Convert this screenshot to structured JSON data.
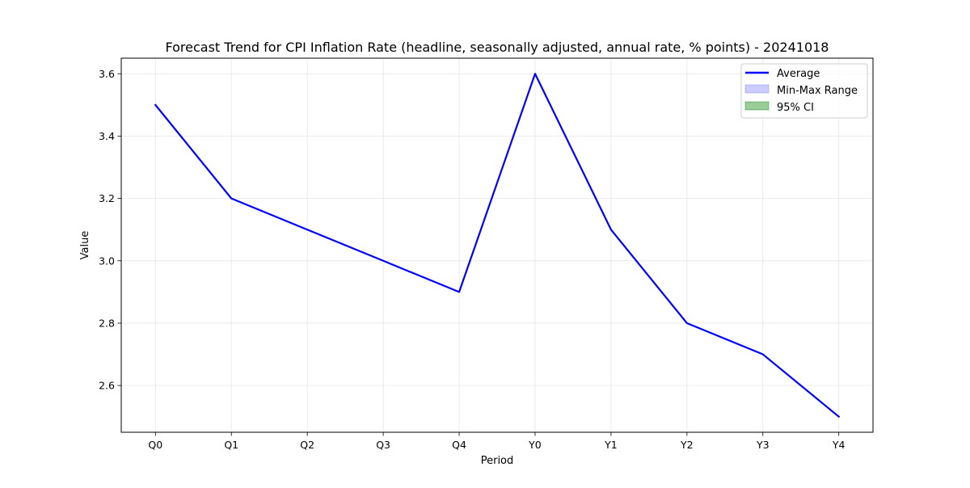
{
  "chart_data": {
    "type": "line",
    "title": "Forecast Trend for CPI Inflation Rate (headline, seasonally adjusted, annual rate, % points) - 20241018",
    "xlabel": "Period",
    "ylabel": "Value",
    "categories": [
      "Q0",
      "Q1",
      "Q2",
      "Q3",
      "Q4",
      "Y0",
      "Y1",
      "Y2",
      "Y3",
      "Y4"
    ],
    "series": [
      {
        "name": "Average",
        "values": [
          3.5,
          3.2,
          3.1,
          3.0,
          2.9,
          3.6,
          3.1,
          2.8,
          2.7,
          2.5
        ],
        "color": "#0000ff"
      }
    ],
    "bands": [
      {
        "name": "Min-Max Range",
        "color": "#0000ff",
        "opacity": 0.2
      },
      {
        "name": "95% CI",
        "color": "#008000",
        "opacity": 0.4
      }
    ],
    "ylim": [
      2.45,
      3.65
    ],
    "yticks": [
      2.6,
      2.8,
      3.0,
      3.2,
      3.4,
      3.6
    ],
    "grid": true,
    "legend_position": "top-right"
  }
}
